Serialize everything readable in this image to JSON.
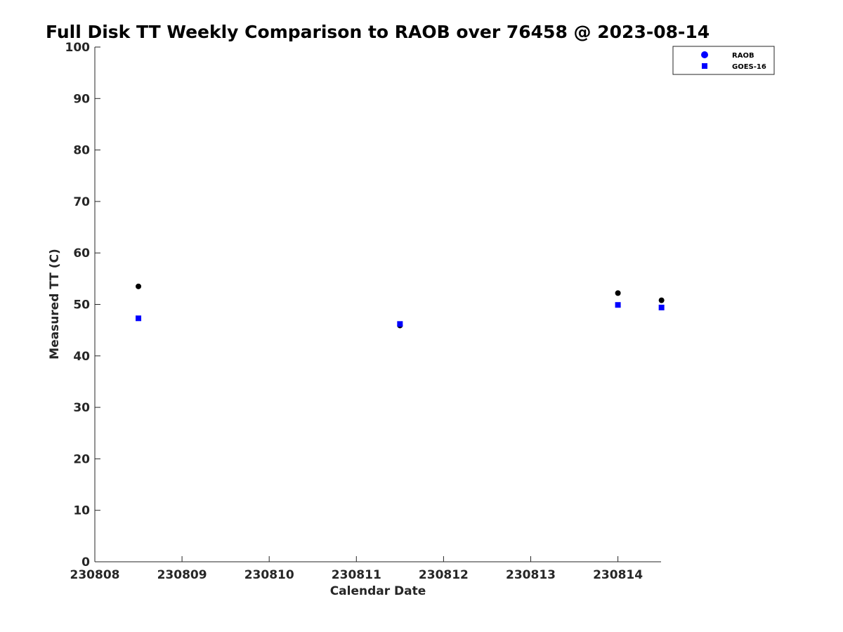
{
  "chart_data": {
    "type": "scatter",
    "title": "Full Disk TT Weekly Comparison to RAOB over 76458 @ 2023-08-14",
    "xlabel": "Calendar Date",
    "ylabel": "Measured TT (C)",
    "xlim": [
      "230808",
      "230814.5"
    ],
    "ylim": [
      0,
      100
    ],
    "x_ticks": [
      "230808",
      "230809",
      "230810",
      "230811",
      "230812",
      "230813",
      "230814"
    ],
    "y_ticks": [
      0,
      10,
      20,
      30,
      40,
      50,
      60,
      70,
      80,
      90,
      100
    ],
    "grid": false,
    "legend_position": "top-right",
    "series": [
      {
        "name": "RAOB",
        "marker": "circle",
        "legend_color": "#0000ff",
        "point_color": "#000000",
        "points": [
          {
            "x": "2023-08-08 12:00",
            "y": 53.5
          },
          {
            "x": "2023-08-11 12:00",
            "y": 45.9
          },
          {
            "x": "2023-08-14 00:00",
            "y": 52.2
          },
          {
            "x": "2023-08-14 12:00",
            "y": 50.8
          }
        ]
      },
      {
        "name": "GOES-16",
        "marker": "square",
        "legend_color": "#0000ff",
        "point_color": "#0000ff",
        "points": [
          {
            "x": "2023-08-08 12:00",
            "y": 47.3
          },
          {
            "x": "2023-08-11 12:00",
            "y": 46.2
          },
          {
            "x": "2023-08-14 00:00",
            "y": 49.9
          },
          {
            "x": "2023-08-14 12:00",
            "y": 49.4
          }
        ]
      }
    ]
  }
}
